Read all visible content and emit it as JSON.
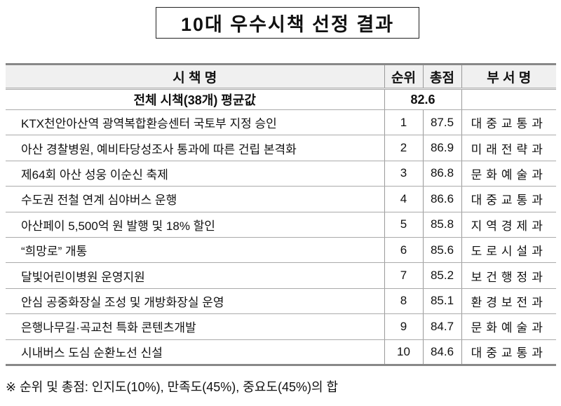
{
  "title": "10대 우수시책 선정 결과",
  "table": {
    "headers": [
      "시 책 명",
      "순위",
      "총점",
      "부 서 명"
    ],
    "average": {
      "label": "전체 시책(38개) 평균값",
      "score": "82.6"
    },
    "rows": [
      {
        "name": "KTX천안아산역 광역복합환승센터 국토부 지정 승인",
        "rank": "1",
        "score": "87.5",
        "dept": "대중교통과"
      },
      {
        "name": "아산 경찰병원, 예비타당성조사 통과에 따른 건립 본격화",
        "rank": "2",
        "score": "86.9",
        "dept": "미래전략과"
      },
      {
        "name": "제64회 아산 성웅 이순신 축제",
        "rank": "3",
        "score": "86.8",
        "dept": "문화예술과"
      },
      {
        "name": "수도권 전철 연계 심야버스 운행",
        "rank": "4",
        "score": "86.6",
        "dept": "대중교통과"
      },
      {
        "name": "아산페이 5,500억 원 발행 및 18% 할인",
        "rank": "5",
        "score": "85.8",
        "dept": "지역경제과"
      },
      {
        "name": "“희망로” 개통",
        "rank": "6",
        "score": "85.6",
        "dept": "도로시설과"
      },
      {
        "name": "달빛어린이병원 운영지원",
        "rank": "7",
        "score": "85.2",
        "dept": "보건행정과"
      },
      {
        "name": "안심 공중화장실 조성 및 개방화장실 운영",
        "rank": "8",
        "score": "85.1",
        "dept": "환경보전과"
      },
      {
        "name": "은행나무길·곡교천 특화 콘텐츠개발",
        "rank": "9",
        "score": "84.7",
        "dept": "문화예술과"
      },
      {
        "name": "시내버스 도심 순환노선 신설",
        "rank": "10",
        "score": "84.6",
        "dept": "대중교통과"
      }
    ]
  },
  "footnote": "※ 순위 및 총점: 인지도(10%), 만족도(45%), 중요도(45%)의 합"
}
